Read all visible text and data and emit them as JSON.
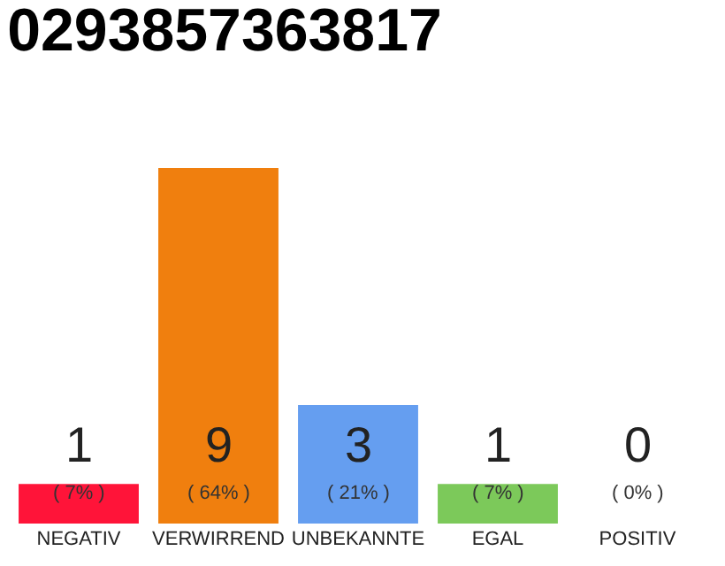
{
  "chart_data": {
    "type": "bar",
    "title": "0293857363817",
    "categories": [
      "NEGATIV",
      "VERWIRREND",
      "UNBEKANNTE",
      "EGAL",
      "POSITIV"
    ],
    "values": [
      1,
      9,
      3,
      1,
      0
    ],
    "colors": [
      "#ff1439",
      "#f07f0e",
      "#659ef0",
      "#7cc95a",
      "#2ca84a"
    ],
    "value_labels": [
      "1\n( 7% )",
      "9\n( 64% )",
      "3\n( 21% )",
      "1\n( 7% )",
      "0\n( 0% )"
    ],
    "ylim": [
      0,
      9
    ],
    "tick_labels": "x"
  }
}
